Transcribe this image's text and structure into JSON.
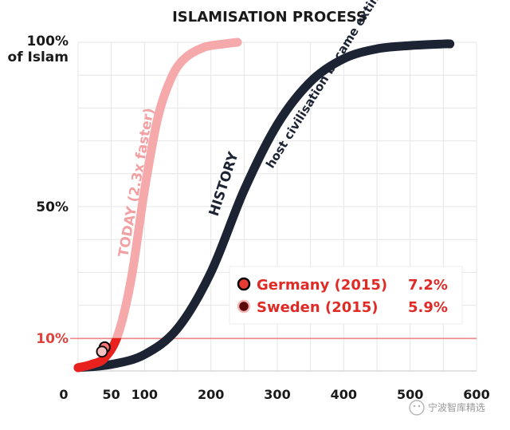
{
  "chart_data": {
    "type": "line",
    "title": "ISLAMISATION PROCESS",
    "x_ticks": [
      "0",
      "50",
      "100",
      "200",
      "300",
      "400",
      "500",
      "600"
    ],
    "x_tick_values": [
      0,
      50,
      100,
      200,
      300,
      400,
      500,
      600
    ],
    "y_tick_labels": [
      {
        "value": 100,
        "line1": "100%",
        "line2": "of Islam"
      },
      {
        "value": 50,
        "line1": "50%",
        "line2": ""
      },
      {
        "value": 10,
        "line1": "10%",
        "line2": ""
      }
    ],
    "xlim": [
      0,
      600
    ],
    "ylim": [
      0,
      100
    ],
    "threshold": {
      "value": 10,
      "color": "#f08a8a"
    },
    "series": [
      {
        "name": "HISTORY",
        "subtitle": "host civilisation became extinct",
        "color": "#1c2333",
        "x": [
          0,
          50,
          100,
          150,
          200,
          250,
          300,
          350,
          400,
          450,
          500,
          550,
          560
        ],
        "y": [
          1,
          2,
          5,
          13,
          30,
          55,
          75,
          88,
          95,
          98,
          99,
          99.5,
          99.5
        ]
      },
      {
        "name": "TODAY (2.3x faster)",
        "color": "#f6a9aa",
        "x": [
          0,
          20,
          40,
          60,
          80,
          100,
          120,
          140,
          160,
          190,
          220,
          240
        ],
        "y": [
          1,
          2,
          4,
          11,
          28,
          55,
          77,
          89,
          95,
          98.5,
          99.5,
          100
        ]
      }
    ],
    "highlight_color": "#e8211e",
    "points": [
      {
        "label": "Germany (2015)",
        "value": "7.2%",
        "x": 40,
        "y": 7.2,
        "fill": "#ff7777",
        "stroke": "#000000"
      },
      {
        "label": "Sweden (2015)",
        "value": "5.9%",
        "x": 36,
        "y": 5.9,
        "fill": "#f7c2c2",
        "stroke": "#111111"
      }
    ],
    "legend": {
      "placement": "center-right",
      "entries": [
        {
          "label": "Germany (2015)",
          "value": "7.2%",
          "fill": "#e63b33",
          "stroke": "#000000"
        },
        {
          "label": "Sweden (2015)",
          "value": "5.9%",
          "fill": "#5a0a0a",
          "stroke": "#f4b7b5"
        }
      ]
    },
    "grid": true
  },
  "watermark": "宁波智库精选"
}
